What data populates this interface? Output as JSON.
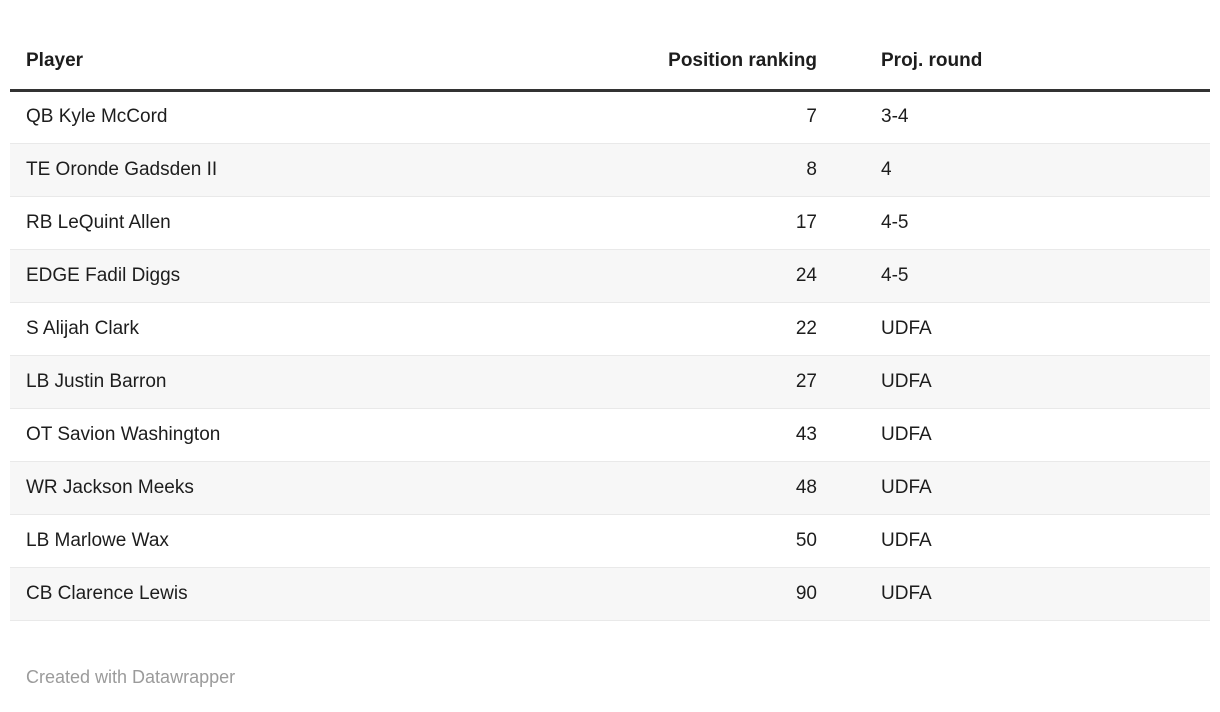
{
  "chart_data": {
    "type": "table",
    "columns": [
      {
        "label": "Player",
        "align": "left"
      },
      {
        "label": "Position ranking",
        "align": "right"
      },
      {
        "label": "Proj. round",
        "align": "left"
      }
    ],
    "rows": [
      [
        "QB Kyle McCord",
        "7",
        "3-4"
      ],
      [
        "TE Oronde Gadsden II",
        "8",
        "4"
      ],
      [
        "RB LeQuint Allen",
        "17",
        "4-5"
      ],
      [
        "EDGE Fadil Diggs",
        "24",
        "4-5"
      ],
      [
        "S Alijah Clark",
        "22",
        "UDFA"
      ],
      [
        "LB Justin Barron",
        "27",
        "UDFA"
      ],
      [
        "OT Savion Washington",
        "43",
        "UDFA"
      ],
      [
        "WR Jackson Meeks",
        "48",
        "UDFA"
      ],
      [
        "LB Marlowe Wax",
        "50",
        "UDFA"
      ],
      [
        "CB Clarence Lewis",
        "90",
        "UDFA"
      ]
    ],
    "layout": {
      "striped": true,
      "header_rule": true,
      "legend_position": "none",
      "grid": "horizontal-row-borders"
    }
  },
  "footer": {
    "attribution": "Created with Datawrapper"
  },
  "colors": {
    "background": "#ffffff",
    "text": "#1d1d1d",
    "header_rule": "#333333",
    "stripe": "#f7f7f7",
    "row_border": "#e9e9e9",
    "footer_text": "#9b9b9b"
  }
}
